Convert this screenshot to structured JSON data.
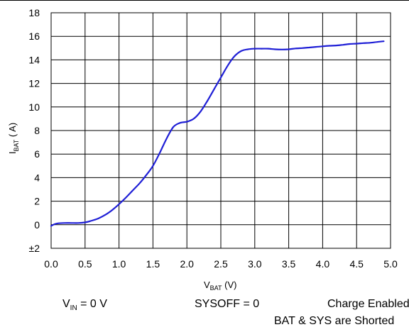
{
  "chart_data": {
    "type": "line",
    "title": "",
    "xlabel": {
      "main": "V",
      "sub": "BAT",
      "tail": " (V)"
    },
    "ylabel": {
      "main": "I",
      "sub": "BAT",
      "tail": " ( A)"
    },
    "xlim": [
      0.0,
      5.0
    ],
    "ylim": [
      -2,
      18
    ],
    "x_ticks": [
      "0.0",
      "0.5",
      "1.0",
      "1.5",
      "2.0",
      "2.5",
      "3.0",
      "3.5",
      "4.0",
      "4.5",
      "5.0"
    ],
    "y_ticks": [
      "±2",
      "0",
      "2",
      "4",
      "6",
      "8",
      "10",
      "12",
      "14",
      "16",
      "18"
    ],
    "grid": true,
    "line_color": "#1f1fd6",
    "series": [
      {
        "x": [
          0.0,
          0.05,
          0.1,
          0.2,
          0.3,
          0.4,
          0.5,
          0.6,
          0.7,
          0.8,
          0.9,
          1.0,
          1.1,
          1.2,
          1.3,
          1.4,
          1.5,
          1.6,
          1.7,
          1.8,
          1.9,
          2.0,
          2.1,
          2.2,
          2.3,
          2.4,
          2.5,
          2.6,
          2.7,
          2.8,
          2.9,
          3.0,
          3.1,
          3.2,
          3.3,
          3.4,
          3.5,
          3.6,
          3.7,
          3.8,
          3.9,
          4.0,
          4.1,
          4.2,
          4.3,
          4.4,
          4.5,
          4.6,
          4.7,
          4.8,
          4.9
        ],
        "y": [
          -0.1,
          0.05,
          0.12,
          0.15,
          0.15,
          0.15,
          0.2,
          0.35,
          0.55,
          0.85,
          1.25,
          1.75,
          2.3,
          2.9,
          3.5,
          4.2,
          5.0,
          6.1,
          7.3,
          8.3,
          8.65,
          8.75,
          9.0,
          9.6,
          10.5,
          11.5,
          12.5,
          13.5,
          14.3,
          14.75,
          14.9,
          14.95,
          14.95,
          14.95,
          14.9,
          14.88,
          14.9,
          14.97,
          15.0,
          15.05,
          15.1,
          15.15,
          15.2,
          15.22,
          15.28,
          15.35,
          15.38,
          15.42,
          15.45,
          15.52,
          15.58
        ]
      }
    ]
  },
  "conditions": {
    "vin": {
      "main": "V",
      "sub": "IN",
      "tail": " = 0 V"
    },
    "sysoff": "SYSOFF = 0",
    "charge": "Charge Enabled",
    "shorted": "BAT & SYS are Shorted"
  }
}
